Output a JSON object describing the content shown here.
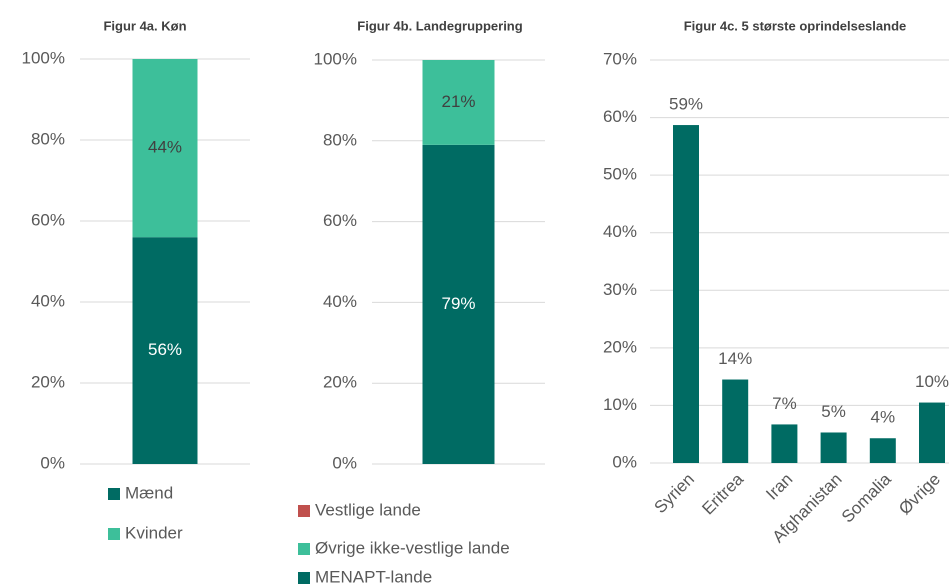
{
  "chart_data": [
    {
      "type": "stacked_bar",
      "title": "Figur 4a. Køn",
      "categories": [
        null
      ],
      "series": [
        {
          "name": "Mænd",
          "color": "#006b63",
          "label_color": "#ffffff",
          "values": [
            56
          ],
          "value_labels": [
            "56%"
          ]
        },
        {
          "name": "Kvinder",
          "color": "#3dbf9a",
          "label_color": "#404040",
          "values": [
            44
          ],
          "value_labels": [
            "44%"
          ]
        }
      ],
      "ylim": [
        0,
        100
      ],
      "yticks": [
        {
          "value": 0,
          "label": "0%"
        },
        {
          "value": 20,
          "label": "20%"
        },
        {
          "value": 40,
          "label": "40%"
        },
        {
          "value": 60,
          "label": "60%"
        },
        {
          "value": 80,
          "label": "80%"
        },
        {
          "value": 100,
          "label": "100%"
        }
      ],
      "grid": true,
      "legend_reversed": false
    },
    {
      "type": "stacked_bar",
      "title": "Figur 4b. Landegruppering",
      "categories": [
        null
      ],
      "series": [
        {
          "name": "MENAPT-lande",
          "color": "#006b63",
          "label_color": "#ffffff",
          "values": [
            79
          ],
          "value_labels": [
            "79%"
          ]
        },
        {
          "name": "Øvrige ikke-vestlige lande",
          "color": "#3dbf9a",
          "label_color": "#404040",
          "values": [
            21
          ],
          "value_labels": [
            "21%"
          ]
        },
        {
          "name": "Vestlige lande",
          "color": "#c0504d",
          "values": [
            0
          ]
        }
      ],
      "ylim": [
        0,
        100
      ],
      "yticks": [
        {
          "value": 0,
          "label": "0%"
        },
        {
          "value": 20,
          "label": "20%"
        },
        {
          "value": 40,
          "label": "40%"
        },
        {
          "value": 60,
          "label": "60%"
        },
        {
          "value": 80,
          "label": "80%"
        },
        {
          "value": 100,
          "label": "100%"
        }
      ],
      "grid": true,
      "legend_reversed": true
    },
    {
      "type": "bar",
      "title": "Figur 4c. 5 største oprindelseslande",
      "categories": [
        "Syrien",
        "Eritrea",
        "Iran",
        "Afghanistan",
        "Somalia",
        "Øvrige"
      ],
      "values": [
        58.7,
        14.5,
        6.7,
        5.3,
        4.3,
        10.5
      ],
      "value_labels": [
        "59%",
        "14%",
        "7%",
        "5%",
        "4%",
        "10%"
      ],
      "color": "#006b63",
      "ylim": [
        0,
        70
      ],
      "yticks": [
        {
          "value": 0,
          "label": "0%"
        },
        {
          "value": 10,
          "label": "10%"
        },
        {
          "value": 20,
          "label": "20%"
        },
        {
          "value": 30,
          "label": "30%"
        },
        {
          "value": 40,
          "label": "40%"
        },
        {
          "value": 50,
          "label": "50%"
        },
        {
          "value": 60,
          "label": "60%"
        },
        {
          "value": 70,
          "label": "70%"
        }
      ],
      "grid": true
    }
  ]
}
